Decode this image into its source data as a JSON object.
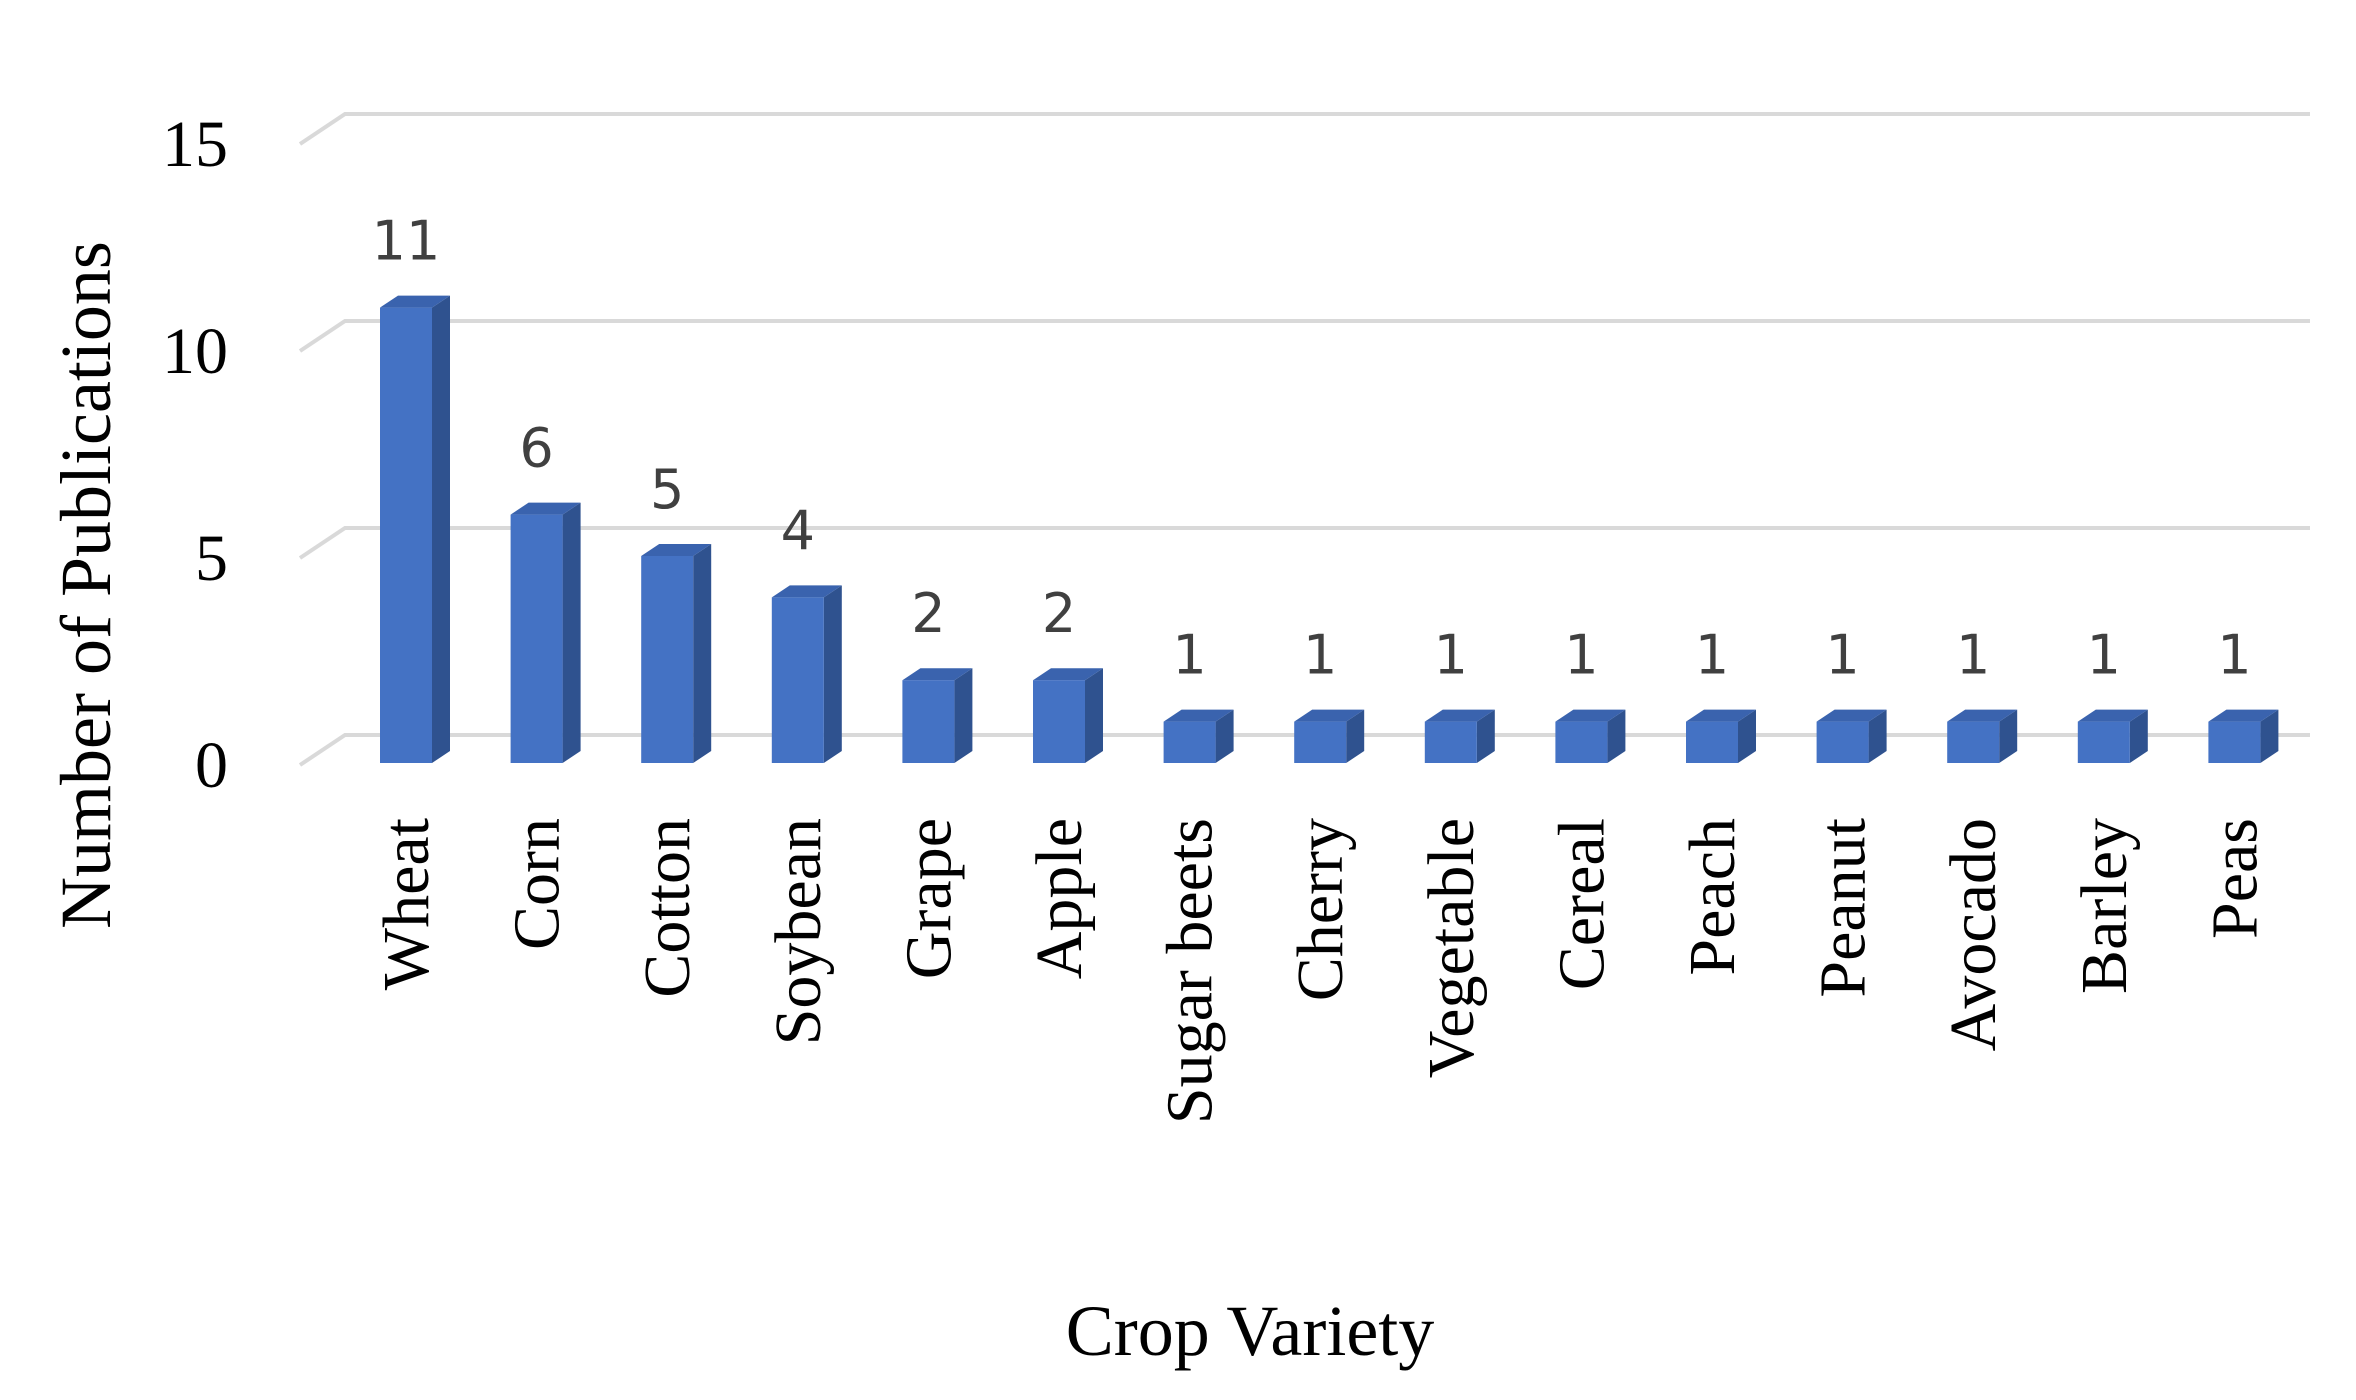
{
  "chart_data": {
    "type": "bar",
    "title": "",
    "xlabel": "Crop Variety",
    "ylabel": "Number of Publications",
    "categories": [
      "Wheat",
      "Corn",
      "Cotton",
      "Soybean",
      "Grape",
      "Apple",
      "Sugar beets",
      "Cherry",
      "Vegetable",
      "Cereal",
      "Peach",
      "Peanut",
      "Avocado",
      "Barley",
      "Peas"
    ],
    "values": [
      11,
      6,
      5,
      4,
      2,
      2,
      1,
      1,
      1,
      1,
      1,
      1,
      1,
      1,
      1
    ],
    "ylim": [
      0,
      15
    ],
    "yticks": [
      0,
      5,
      10,
      15
    ],
    "grid": true,
    "legend": "none",
    "style": "3d-column",
    "colors": {
      "bar_front": "#4472C4",
      "bar_side": "#2F528F",
      "bar_top": "#3A63AE",
      "grid": "#D9D9D9",
      "data_label": "#404040"
    }
  }
}
